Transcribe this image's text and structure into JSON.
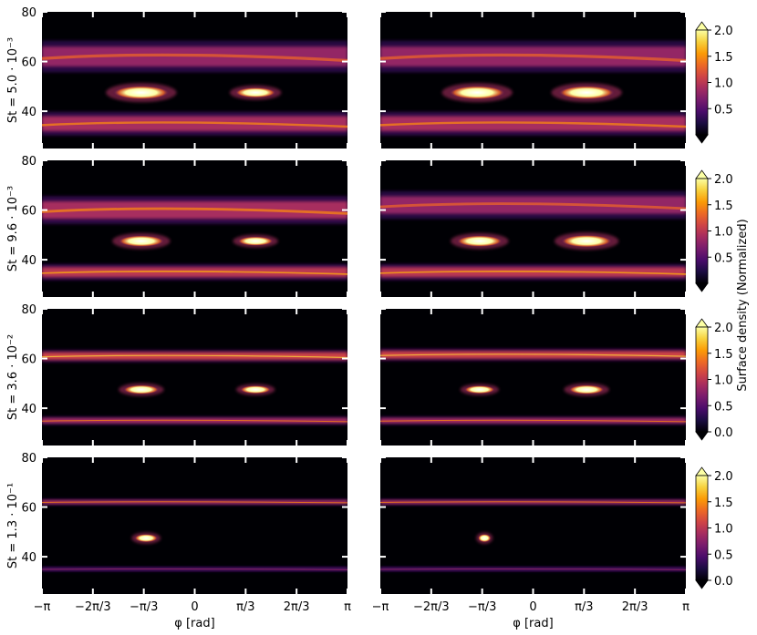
{
  "chart_data": {
    "type": "heatmap",
    "xlabel": "φ [rad]",
    "x_tick_labels": [
      "−π",
      "−2π/3",
      "−π/3",
      "0",
      "π/3",
      "2π/3",
      "π"
    ],
    "x_ticks": [
      -3.1416,
      -2.0944,
      -1.0472,
      0,
      1.0472,
      2.0944,
      3.1416
    ],
    "xlim": [
      -3.1416,
      3.1416
    ],
    "ylim": [
      25,
      80
    ],
    "y_ticks": [
      40,
      60,
      80
    ],
    "y_tick_labels": [
      "40",
      "60",
      "80"
    ],
    "colorbar": {
      "label": "Surface density (Normalized)",
      "colormap": "inferno",
      "colors": [
        "#000004",
        "#1b0c41",
        "#4a0c6b",
        "#781c6d",
        "#a52c60",
        "#cf4446",
        "#ed6925",
        "#fb9b06",
        "#f7d13d",
        "#fcffa4"
      ],
      "extend": "both",
      "range": [
        0,
        2.0
      ]
    },
    "rows": [
      {
        "ylabel": "St = 5.0 · 10⁻³",
        "colorbar_ticks": [
          "0.5",
          "1.0",
          "1.5",
          "2.0"
        ],
        "colorbar_tick_values": [
          0.5,
          1.0,
          1.5,
          2.0
        ],
        "panels": [
          {
            "bands": [
              {
                "y": 62,
                "width": 8,
                "level": 0.8
              },
              {
                "y": 35,
                "width": 6,
                "level": 0.9
              }
            ],
            "clumps": [
              {
                "phi": -1.1,
                "y": 47.5,
                "level": 2.0,
                "size": 1.0
              },
              {
                "phi": 1.25,
                "y": 47.5,
                "level": 1.7,
                "size": 0.7
              }
            ]
          },
          {
            "bands": [
              {
                "y": 62,
                "width": 8,
                "level": 0.8
              },
              {
                "y": 35,
                "width": 6,
                "level": 0.9
              }
            ],
            "clumps": [
              {
                "phi": -1.15,
                "y": 47.5,
                "level": 1.8,
                "size": 1.0
              },
              {
                "phi": 1.1,
                "y": 47.5,
                "level": 2.0,
                "size": 1.0
              }
            ]
          }
        ]
      },
      {
        "ylabel": "St = 9.6 · 10⁻³",
        "colorbar_ticks": [
          "0.5",
          "1.0",
          "1.5",
          "2.0"
        ],
        "colorbar_tick_values": [
          0.5,
          1.0,
          1.5,
          2.0
        ],
        "panels": [
          {
            "bands": [
              {
                "y": 60,
                "width": 7,
                "level": 0.9
              },
              {
                "y": 35,
                "width": 4,
                "level": 1.0
              }
            ],
            "clumps": [
              {
                "phi": -1.1,
                "y": 47.5,
                "level": 2.0,
                "size": 0.8
              },
              {
                "phi": 1.25,
                "y": 47.5,
                "level": 1.8,
                "size": 0.6
              }
            ]
          },
          {
            "bands": [
              {
                "y": 62,
                "width": 7,
                "level": 0.8
              },
              {
                "y": 35,
                "width": 4,
                "level": 1.0
              }
            ],
            "clumps": [
              {
                "phi": -1.1,
                "y": 47.5,
                "level": 1.8,
                "size": 0.8
              },
              {
                "phi": 1.1,
                "y": 47.5,
                "level": 2.0,
                "size": 0.9
              }
            ]
          }
        ]
      },
      {
        "ylabel": "St = 3.6 · 10⁻²",
        "colorbar_ticks": [
          "0.0",
          "0.5",
          "1.0",
          "1.5",
          "2.0"
        ],
        "colorbar_tick_values": [
          0.0,
          0.5,
          1.0,
          1.5,
          2.0
        ],
        "panels": [
          {
            "bands": [
              {
                "y": 61,
                "width": 3,
                "level": 1.1
              },
              {
                "y": 35,
                "width": 2,
                "level": 0.9
              }
            ],
            "clumps": [
              {
                "phi": -1.1,
                "y": 47.5,
                "level": 2.0,
                "size": 0.6
              },
              {
                "phi": 1.25,
                "y": 47.5,
                "level": 1.9,
                "size": 0.5
              }
            ]
          },
          {
            "bands": [
              {
                "y": 61.5,
                "width": 3,
                "level": 1.1
              },
              {
                "y": 35,
                "width": 2,
                "level": 0.9
              }
            ],
            "clumps": [
              {
                "phi": -1.1,
                "y": 47.5,
                "level": 1.9,
                "size": 0.5
              },
              {
                "phi": 1.1,
                "y": 47.5,
                "level": 2.0,
                "size": 0.6
              }
            ]
          }
        ]
      },
      {
        "ylabel": "St = 1.3 · 10⁻¹",
        "colorbar_ticks": [
          "0.0",
          "0.5",
          "1.0",
          "1.5",
          "2.0"
        ],
        "colorbar_tick_values": [
          0.0,
          0.5,
          1.0,
          1.5,
          2.0
        ],
        "panels": [
          {
            "bands": [
              {
                "y": 62,
                "width": 1.5,
                "level": 0.9
              },
              {
                "y": 35,
                "width": 1.2,
                "level": 0.5
              }
            ],
            "clumps": [
              {
                "phi": -1.0,
                "y": 47.5,
                "level": 2.0,
                "size": 0.35
              }
            ]
          },
          {
            "bands": [
              {
                "y": 62,
                "width": 1.5,
                "level": 0.9
              },
              {
                "y": 35,
                "width": 1.2,
                "level": 0.5
              }
            ],
            "clumps": [
              {
                "phi": -1.0,
                "y": 47.5,
                "level": 2.0,
                "size": 0.15
              }
            ]
          }
        ]
      }
    ]
  }
}
